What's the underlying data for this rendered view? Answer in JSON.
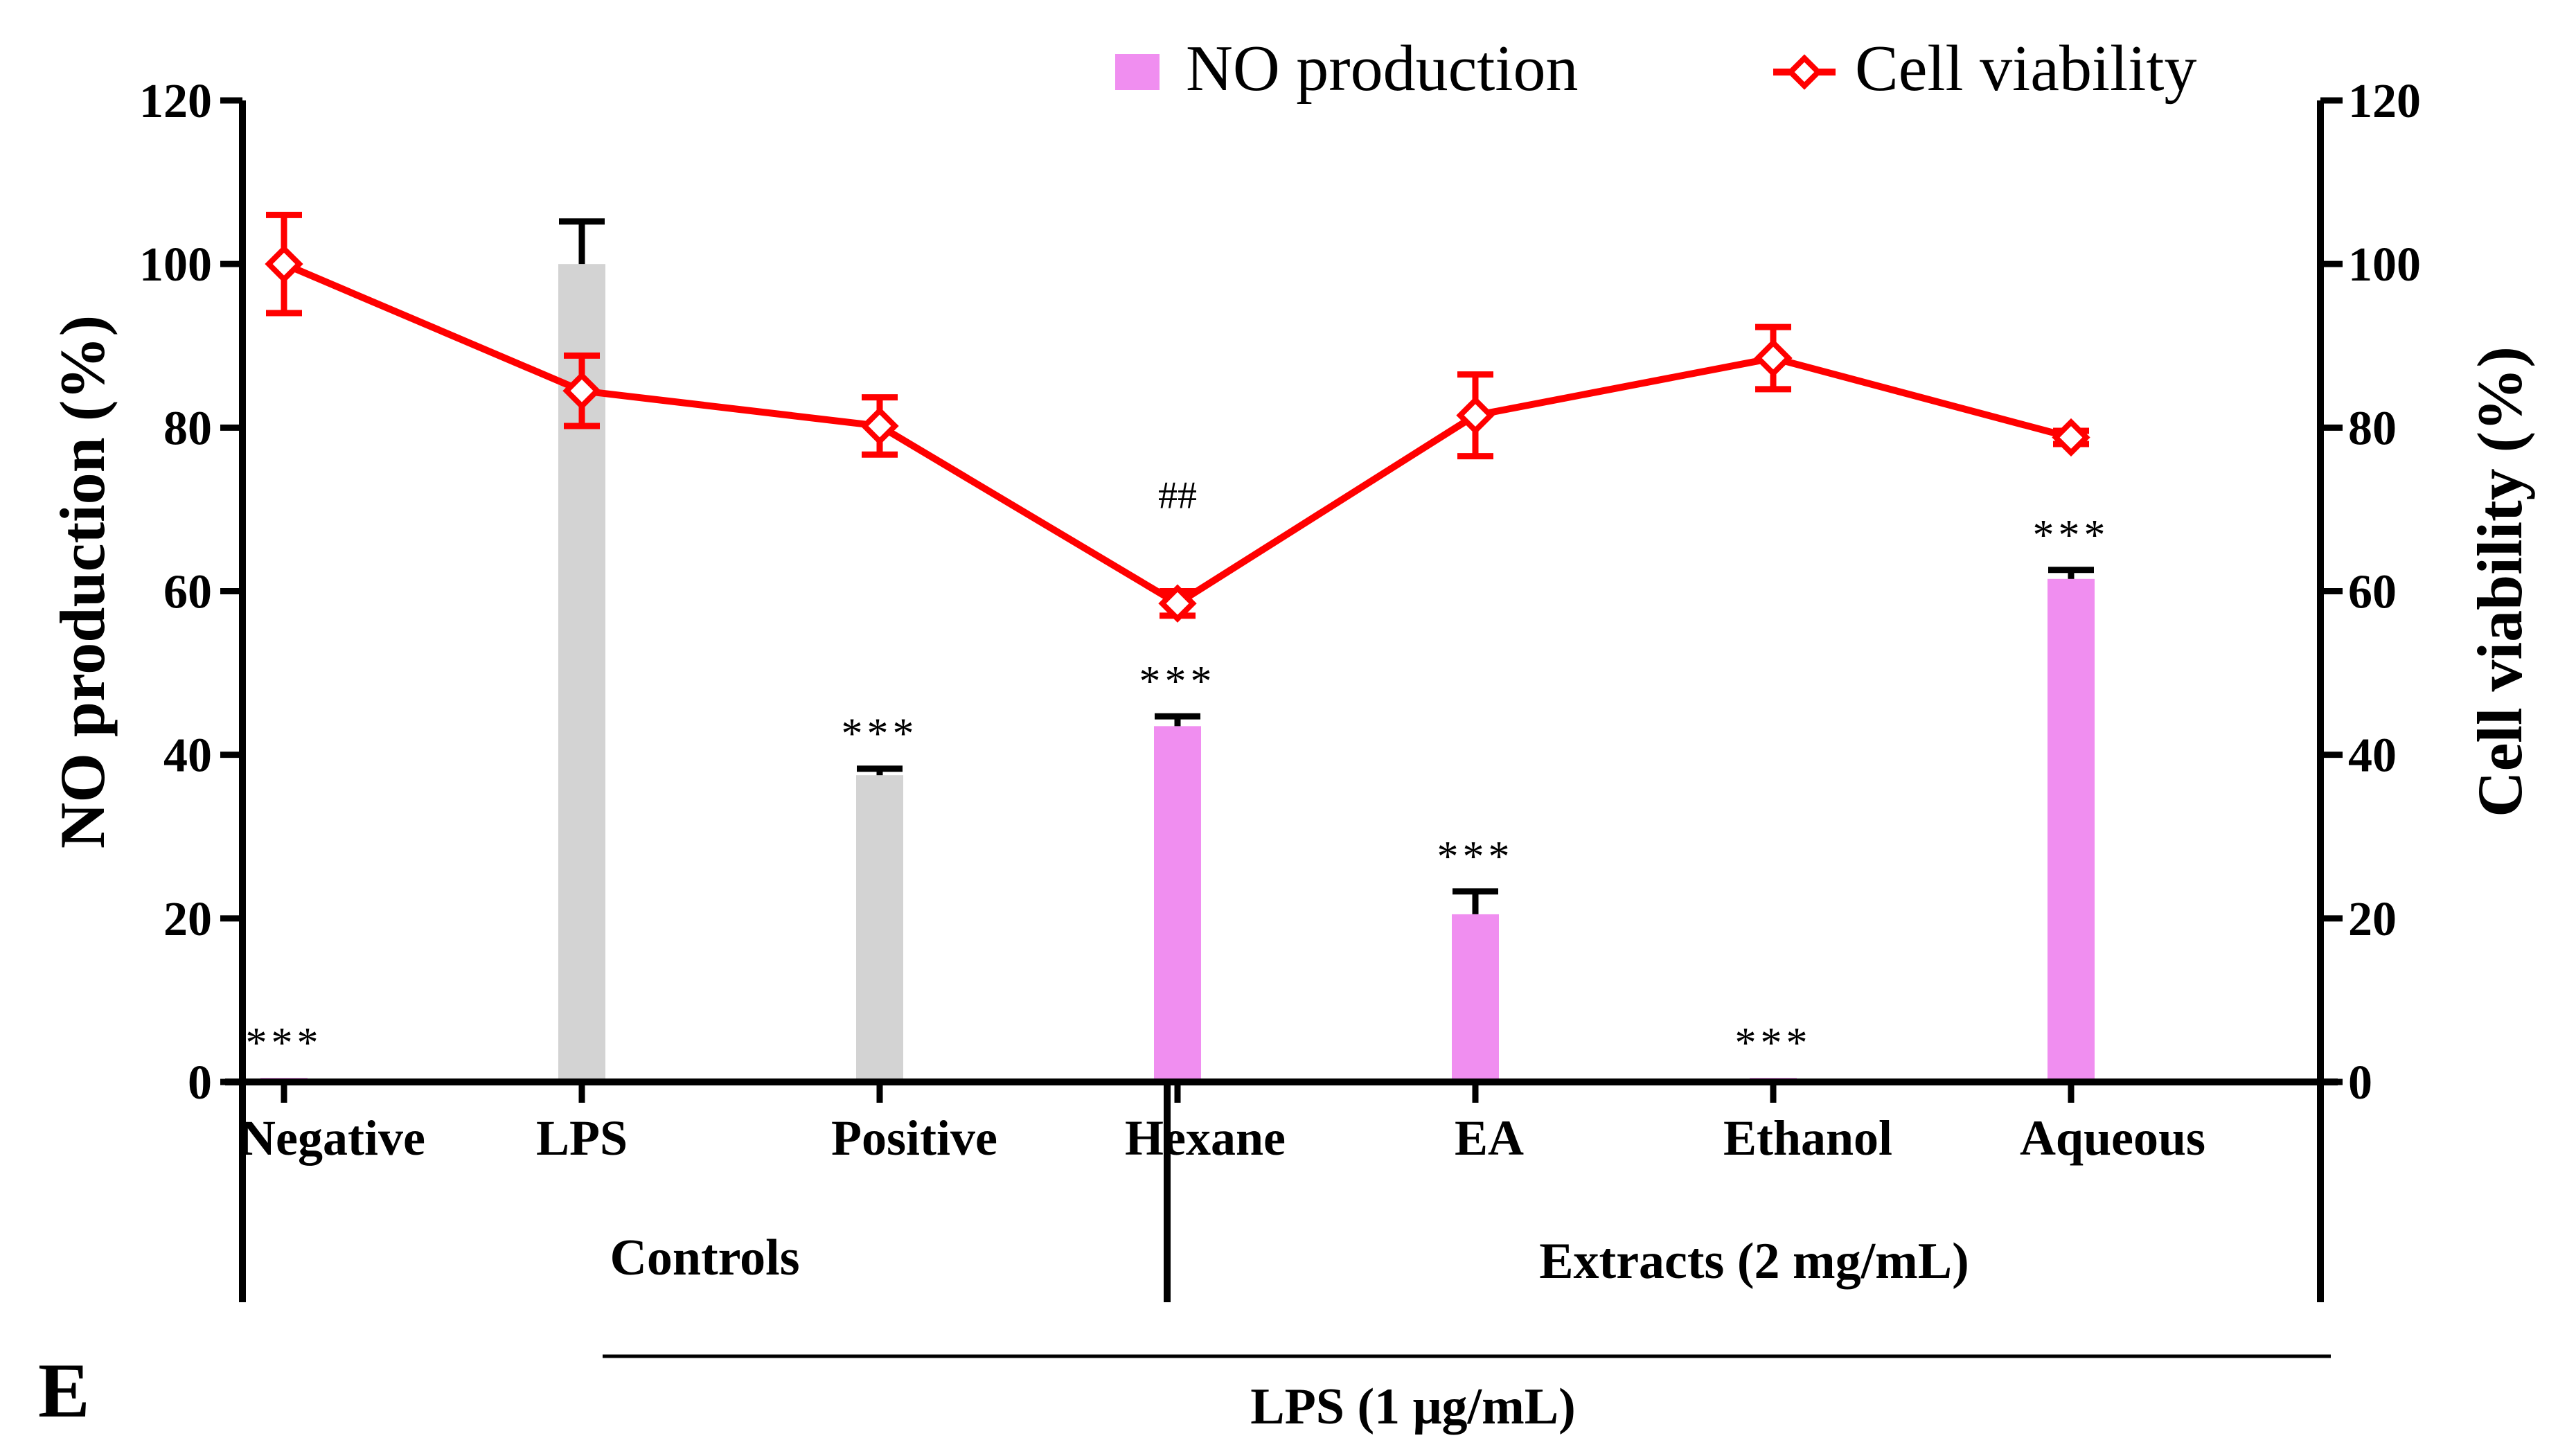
{
  "chart_data": {
    "type": "bar",
    "panel_label": "E",
    "categories": [
      "Negative",
      "LPS",
      "Positive",
      "Hexane",
      "EA",
      "Ethanol",
      "Aqueous"
    ],
    "category_colors": [
      "#f08ef0",
      "#d3d3d3",
      "#d3d3d3",
      "#f08ef0",
      "#f08ef0",
      "#f08ef0",
      "#f08ef0"
    ],
    "series": [
      {
        "name": "NO production",
        "type": "bar",
        "axis": "left",
        "color": "#f08ef0",
        "values": [
          0.5,
          100,
          37.5,
          43.5,
          20.5,
          0.5,
          61.5
        ],
        "errors": [
          0,
          5.2,
          0.8,
          1.2,
          2.8,
          0,
          1.1
        ],
        "annotations": [
          "***",
          "",
          "***",
          "***",
          "***",
          "***",
          "***"
        ]
      },
      {
        "name": "Cell viability",
        "type": "line",
        "axis": "right",
        "color": "#ff0000",
        "values": [
          100,
          84.5,
          80.2,
          58.5,
          81.5,
          88.5,
          78.8
        ],
        "errors": [
          6,
          4.3,
          3.5,
          1.5,
          5,
          3.8,
          0.8
        ],
        "annotations": [
          "",
          "",
          "",
          "##",
          "",
          "",
          ""
        ]
      }
    ],
    "ylabel": "NO production (%)",
    "y2label": "Cell viability (%)",
    "ylim": [
      0,
      120
    ],
    "y2lim": [
      0,
      120
    ],
    "yticks": [
      0,
      20,
      40,
      60,
      80,
      100,
      120
    ],
    "y2ticks": [
      0,
      20,
      40,
      60,
      80,
      100,
      120
    ],
    "groups": [
      {
        "label": "Controls",
        "categories": [
          "Negative",
          "LPS",
          "Positive"
        ]
      },
      {
        "label": "Extracts (2 mg/mL)",
        "categories": [
          "Hexane",
          "EA",
          "Ethanol",
          "Aqueous"
        ]
      }
    ],
    "treatment_bar": {
      "label": "LPS (1 μg/mL)",
      "categories": [
        "LPS",
        "Positive",
        "Hexane",
        "EA",
        "Ethanol",
        "Aqueous"
      ]
    },
    "legend": {
      "position": "top-right",
      "entries": [
        "NO production",
        "Cell viability"
      ]
    },
    "grid": false
  }
}
